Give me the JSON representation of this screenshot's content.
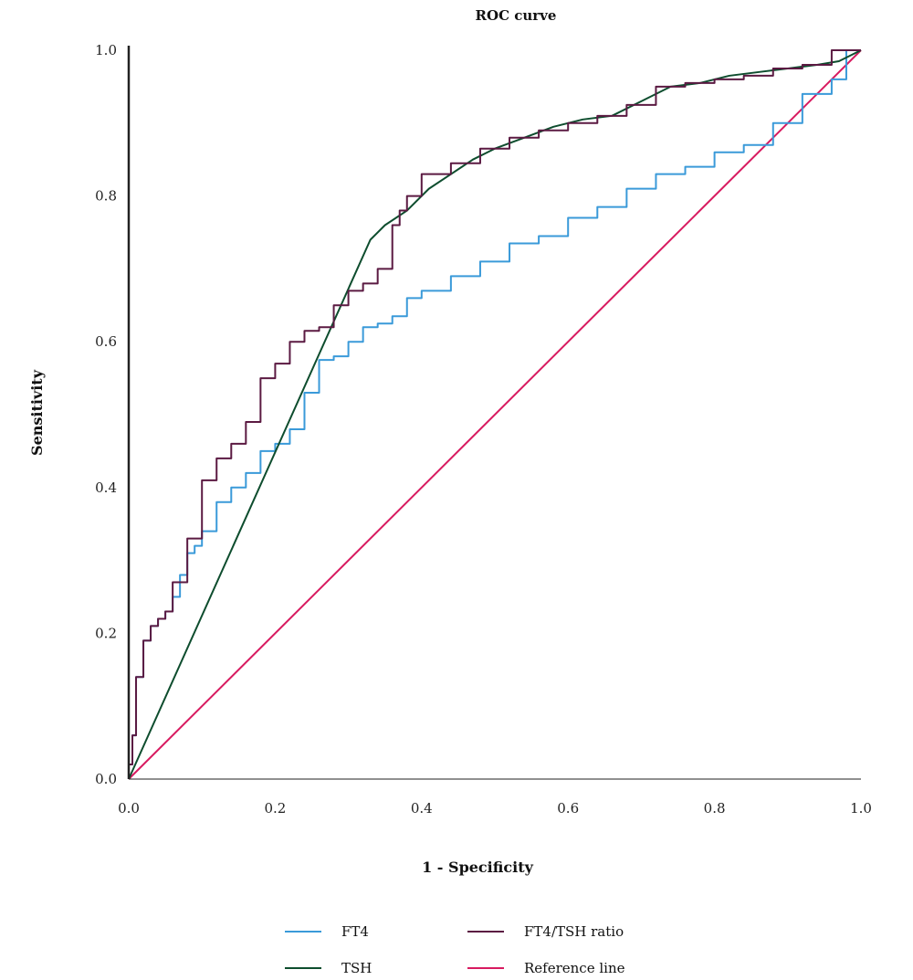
{
  "chart_data": {
    "type": "line",
    "title": "ROC curve",
    "xlabel": "1 - Specificity",
    "ylabel": "Sensitivity",
    "xlim": [
      0,
      1
    ],
    "ylim": [
      0,
      1
    ],
    "x_ticks": [
      "0.0",
      "0.2",
      "0.4",
      "0.6",
      "0.8",
      "1.0"
    ],
    "y_ticks": [
      "0.0",
      "0.2",
      "0.4",
      "0.6",
      "0.8",
      "1.0"
    ],
    "grid": false,
    "legend_position": "bottom",
    "series": [
      {
        "name": "FT4",
        "color": "#3a9ad9",
        "step": true,
        "x": [
          0,
          0.005,
          0.01,
          0.02,
          0.03,
          0.04,
          0.05,
          0.06,
          0.07,
          0.08,
          0.09,
          0.1,
          0.12,
          0.14,
          0.16,
          0.18,
          0.2,
          0.22,
          0.24,
          0.26,
          0.28,
          0.3,
          0.32,
          0.34,
          0.36,
          0.38,
          0.4,
          0.44,
          0.48,
          0.52,
          0.56,
          0.6,
          0.64,
          0.68,
          0.72,
          0.76,
          0.8,
          0.84,
          0.88,
          0.92,
          0.96,
          0.98,
          1.0
        ],
        "y": [
          0,
          0.02,
          0.06,
          0.14,
          0.19,
          0.21,
          0.22,
          0.23,
          0.25,
          0.28,
          0.31,
          0.32,
          0.34,
          0.38,
          0.4,
          0.42,
          0.45,
          0.46,
          0.48,
          0.53,
          0.575,
          0.58,
          0.6,
          0.62,
          0.625,
          0.635,
          0.66,
          0.67,
          0.69,
          0.71,
          0.735,
          0.745,
          0.77,
          0.785,
          0.81,
          0.83,
          0.84,
          0.86,
          0.87,
          0.9,
          0.94,
          0.96,
          1.0
        ]
      },
      {
        "name": "FT4/TSH ratio",
        "color": "#5b1a42",
        "step": true,
        "x": [
          0,
          0.005,
          0.01,
          0.02,
          0.03,
          0.04,
          0.05,
          0.06,
          0.08,
          0.1,
          0.12,
          0.14,
          0.16,
          0.18,
          0.2,
          0.22,
          0.24,
          0.25,
          0.26,
          0.28,
          0.3,
          0.32,
          0.34,
          0.36,
          0.37,
          0.38,
          0.4,
          0.44,
          0.48,
          0.52,
          0.56,
          0.6,
          0.64,
          0.68,
          0.72,
          0.76,
          0.8,
          0.84,
          0.88,
          0.92,
          0.96,
          1.0
        ],
        "y": [
          0,
          0.02,
          0.06,
          0.14,
          0.19,
          0.21,
          0.22,
          0.23,
          0.27,
          0.33,
          0.41,
          0.44,
          0.46,
          0.49,
          0.55,
          0.57,
          0.6,
          0.615,
          0.615,
          0.62,
          0.65,
          0.67,
          0.68,
          0.7,
          0.76,
          0.78,
          0.8,
          0.83,
          0.845,
          0.865,
          0.88,
          0.89,
          0.9,
          0.91,
          0.925,
          0.95,
          0.955,
          0.96,
          0.965,
          0.975,
          0.98,
          1.0
        ]
      },
      {
        "name": "TSH",
        "color": "#0e4d2e",
        "step": false,
        "x": [
          0,
          0.33,
          0.35,
          0.38,
          0.41,
          0.44,
          0.47,
          0.5,
          0.54,
          0.58,
          0.62,
          0.66,
          0.7,
          0.74,
          0.78,
          0.82,
          0.86,
          0.9,
          0.94,
          0.97,
          1.0
        ],
        "y": [
          0,
          0.74,
          0.76,
          0.78,
          0.81,
          0.83,
          0.85,
          0.865,
          0.88,
          0.895,
          0.905,
          0.91,
          0.93,
          0.95,
          0.955,
          0.965,
          0.97,
          0.975,
          0.98,
          0.985,
          1.0
        ]
      },
      {
        "name": "Reference line",
        "color": "#d81b60",
        "step": false,
        "x": [
          0,
          1
        ],
        "y": [
          0,
          1
        ]
      }
    ]
  }
}
